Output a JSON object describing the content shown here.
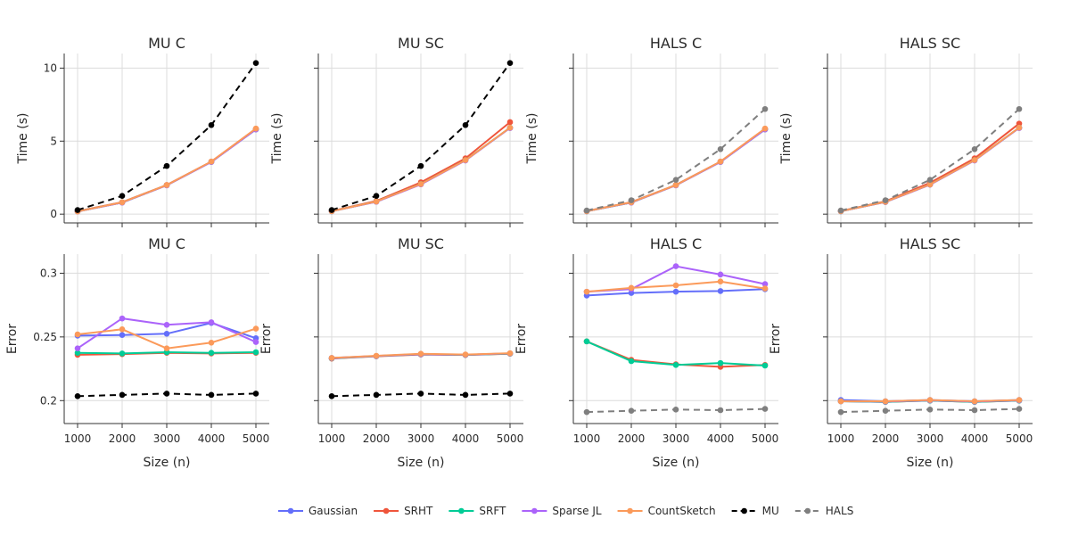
{
  "colors": {
    "Gaussian": "#636efa",
    "SRHT": "#ef553b",
    "SRFT": "#00cc96",
    "Sparse JL": "#ab63fa",
    "CountSketch": "#fb9a5a",
    "MU": "#000000",
    "HALS": "#7f7f7f"
  },
  "legend": [
    {
      "name": "Gaussian",
      "dash": false
    },
    {
      "name": "SRHT",
      "dash": false
    },
    {
      "name": "SRFT",
      "dash": false
    },
    {
      "name": "Sparse JL",
      "dash": false
    },
    {
      "name": "CountSketch",
      "dash": false
    },
    {
      "name": "MU",
      "dash": true
    },
    {
      "name": "HALS",
      "dash": true
    }
  ],
  "chart_data": [
    {
      "type": "line",
      "title": "MU C",
      "row": 0,
      "col": 0,
      "xlabel": "",
      "ylabel": "Time (s)",
      "x": [
        1000,
        2000,
        3000,
        4000,
        5000
      ],
      "ylim": [
        -0.6,
        11.0
      ],
      "yticks": [
        0,
        5,
        10
      ],
      "ytick_labels": [
        "0",
        "5",
        "10"
      ],
      "series": [
        {
          "name": "Gaussian",
          "values": [
            0.18,
            0.8,
            1.98,
            3.58,
            5.82
          ]
        },
        {
          "name": "SRHT",
          "values": [
            0.2,
            0.82,
            2.0,
            3.6,
            5.85
          ]
        },
        {
          "name": "SRFT",
          "values": [
            0.19,
            0.8,
            1.98,
            3.58,
            5.8
          ]
        },
        {
          "name": "Sparse JL",
          "values": [
            0.18,
            0.79,
            1.97,
            3.57,
            5.8
          ]
        },
        {
          "name": "CountSketch",
          "values": [
            0.18,
            0.81,
            1.99,
            3.6,
            5.86
          ]
        },
        {
          "name": "MU",
          "values": [
            0.28,
            1.25,
            3.3,
            6.1,
            10.35
          ],
          "dash": true
        }
      ]
    },
    {
      "type": "line",
      "title": "MU SC",
      "row": 0,
      "col": 1,
      "xlabel": "",
      "ylabel": "Time (s)",
      "x": [
        1000,
        2000,
        3000,
        4000,
        5000
      ],
      "ylim": [
        -0.6,
        11.0
      ],
      "yticks": [
        0,
        5,
        10
      ],
      "ytick_labels": [
        "",
        "",
        ""
      ],
      "series": [
        {
          "name": "Gaussian",
          "values": [
            0.2,
            0.85,
            2.05,
            3.68,
            5.9
          ]
        },
        {
          "name": "SRHT",
          "values": [
            0.21,
            0.9,
            2.18,
            3.82,
            6.3
          ]
        },
        {
          "name": "SRFT",
          "values": [
            0.2,
            0.86,
            2.06,
            3.7,
            5.92
          ]
        },
        {
          "name": "Sparse JL",
          "values": [
            0.2,
            0.85,
            2.04,
            3.68,
            5.9
          ]
        },
        {
          "name": "CountSketch",
          "values": [
            0.2,
            0.86,
            2.06,
            3.7,
            5.92
          ]
        },
        {
          "name": "MU",
          "values": [
            0.28,
            1.25,
            3.3,
            6.1,
            10.35
          ],
          "dash": true
        }
      ]
    },
    {
      "type": "line",
      "title": "HALS C",
      "row": 0,
      "col": 2,
      "xlabel": "",
      "ylabel": "Time (s)",
      "x": [
        1000,
        2000,
        3000,
        4000,
        5000
      ],
      "ylim": [
        -0.6,
        11.0
      ],
      "yticks": [
        0,
        5,
        10
      ],
      "ytick_labels": [
        "",
        "",
        ""
      ],
      "series": [
        {
          "name": "Gaussian",
          "values": [
            0.2,
            0.8,
            1.98,
            3.58,
            5.82
          ]
        },
        {
          "name": "SRHT",
          "values": [
            0.22,
            0.82,
            2.0,
            3.6,
            5.85
          ]
        },
        {
          "name": "SRFT",
          "values": [
            0.2,
            0.8,
            1.98,
            3.58,
            5.8
          ]
        },
        {
          "name": "Sparse JL",
          "values": [
            0.2,
            0.79,
            1.97,
            3.57,
            5.8
          ]
        },
        {
          "name": "CountSketch",
          "values": [
            0.2,
            0.81,
            1.99,
            3.6,
            5.86
          ]
        },
        {
          "name": "HALS",
          "values": [
            0.25,
            0.95,
            2.35,
            4.45,
            7.2
          ],
          "dash": true
        }
      ]
    },
    {
      "type": "line",
      "title": "HALS SC",
      "row": 0,
      "col": 3,
      "xlabel": "",
      "ylabel": "Time (s)",
      "x": [
        1000,
        2000,
        3000,
        4000,
        5000
      ],
      "ylim": [
        -0.6,
        11.0
      ],
      "yticks": [
        0,
        5,
        10
      ],
      "ytick_labels": [
        "",
        "",
        ""
      ],
      "series": [
        {
          "name": "Gaussian",
          "values": [
            0.2,
            0.83,
            2.02,
            3.68,
            5.9
          ]
        },
        {
          "name": "SRHT",
          "values": [
            0.22,
            0.88,
            2.15,
            3.82,
            6.2
          ]
        },
        {
          "name": "SRFT",
          "values": [
            0.2,
            0.84,
            2.03,
            3.7,
            5.92
          ]
        },
        {
          "name": "Sparse JL",
          "values": [
            0.2,
            0.83,
            2.02,
            3.68,
            5.9
          ]
        },
        {
          "name": "CountSketch",
          "values": [
            0.2,
            0.84,
            2.03,
            3.7,
            5.92
          ]
        },
        {
          "name": "HALS",
          "values": [
            0.25,
            0.95,
            2.35,
            4.45,
            7.2
          ],
          "dash": true
        }
      ]
    },
    {
      "type": "line",
      "title": "MU C",
      "row": 1,
      "col": 0,
      "xlabel": "Size (n)",
      "ylabel": "Error",
      "x": [
        1000,
        2000,
        3000,
        4000,
        5000
      ],
      "ylim": [
        0.182,
        0.315
      ],
      "yticks": [
        0.2,
        0.25,
        0.3
      ],
      "ytick_labels": [
        "0.2",
        "0.25",
        "0.3"
      ],
      "series": [
        {
          "name": "Gaussian",
          "values": [
            0.251,
            0.2515,
            0.2525,
            0.261,
            0.249
          ]
        },
        {
          "name": "SRHT",
          "values": [
            0.236,
            0.2365,
            0.2375,
            0.237,
            0.2375
          ]
        },
        {
          "name": "SRFT",
          "values": [
            0.2375,
            0.237,
            0.238,
            0.2375,
            0.238
          ]
        },
        {
          "name": "Sparse JL",
          "values": [
            0.241,
            0.2645,
            0.2595,
            0.2615,
            0.246
          ]
        },
        {
          "name": "CountSketch",
          "values": [
            0.252,
            0.256,
            0.241,
            0.2455,
            0.2565
          ]
        },
        {
          "name": "MU",
          "values": [
            0.2035,
            0.2045,
            0.2055,
            0.2045,
            0.2055
          ],
          "dash": true
        }
      ]
    },
    {
      "type": "line",
      "title": "MU SC",
      "row": 1,
      "col": 1,
      "xlabel": "Size (n)",
      "ylabel": "Error",
      "x": [
        1000,
        2000,
        3000,
        4000,
        5000
      ],
      "ylim": [
        0.182,
        0.315
      ],
      "yticks": [
        0.2,
        0.25,
        0.3
      ],
      "ytick_labels": [
        "",
        "",
        ""
      ],
      "series": [
        {
          "name": "Gaussian",
          "values": [
            0.2335,
            0.235,
            0.2365,
            0.236,
            0.237
          ]
        },
        {
          "name": "SRHT",
          "values": [
            0.233,
            0.2348,
            0.2362,
            0.2358,
            0.2368
          ]
        },
        {
          "name": "SRFT",
          "values": [
            0.2332,
            0.2349,
            0.2364,
            0.2359,
            0.2369
          ]
        },
        {
          "name": "Sparse JL",
          "values": [
            0.2333,
            0.235,
            0.2365,
            0.236,
            0.237
          ]
        },
        {
          "name": "CountSketch",
          "values": [
            0.2335,
            0.2352,
            0.2368,
            0.2362,
            0.2372
          ]
        },
        {
          "name": "MU",
          "values": [
            0.2035,
            0.2045,
            0.2055,
            0.2045,
            0.2055
          ],
          "dash": true
        }
      ]
    },
    {
      "type": "line",
      "title": "HALS C",
      "row": 1,
      "col": 2,
      "xlabel": "Size (n)",
      "ylabel": "Error",
      "x": [
        1000,
        2000,
        3000,
        4000,
        5000
      ],
      "ylim": [
        0.182,
        0.315
      ],
      "yticks": [
        0.2,
        0.25,
        0.3
      ],
      "ytick_labels": [
        "",
        "",
        ""
      ],
      "series": [
        {
          "name": "Gaussian",
          "values": [
            0.2825,
            0.2845,
            0.2855,
            0.286,
            0.2875
          ]
        },
        {
          "name": "SRHT",
          "values": [
            0.2465,
            0.232,
            0.2285,
            0.2265,
            0.228
          ]
        },
        {
          "name": "SRFT",
          "values": [
            0.2465,
            0.231,
            0.228,
            0.2295,
            0.2275
          ]
        },
        {
          "name": "Sparse JL",
          "values": [
            0.2855,
            0.2875,
            0.3055,
            0.299,
            0.2915
          ]
        },
        {
          "name": "CountSketch",
          "values": [
            0.2855,
            0.2885,
            0.2905,
            0.2935,
            0.288
          ]
        },
        {
          "name": "HALS",
          "values": [
            0.191,
            0.192,
            0.193,
            0.1925,
            0.1935
          ],
          "dash": true
        }
      ]
    },
    {
      "type": "line",
      "title": "HALS SC",
      "row": 1,
      "col": 3,
      "xlabel": "Size (n)",
      "ylabel": "Error",
      "x": [
        1000,
        2000,
        3000,
        4000,
        5000
      ],
      "ylim": [
        0.182,
        0.315
      ],
      "yticks": [
        0.2,
        0.25,
        0.3
      ],
      "ytick_labels": [
        "",
        "",
        ""
      ],
      "series": [
        {
          "name": "Gaussian",
          "values": [
            0.2005,
            0.1995,
            0.2005,
            0.1995,
            0.2005
          ]
        },
        {
          "name": "SRHT",
          "values": [
            0.1995,
            0.199,
            0.2,
            0.199,
            0.2
          ]
        },
        {
          "name": "SRFT",
          "values": [
            0.1995,
            0.199,
            0.2,
            0.199,
            0.2
          ]
        },
        {
          "name": "Sparse JL",
          "values": [
            0.1995,
            0.1992,
            0.2002,
            0.1992,
            0.2002
          ]
        },
        {
          "name": "CountSketch",
          "values": [
            0.1995,
            0.1995,
            0.2005,
            0.1995,
            0.2005
          ]
        },
        {
          "name": "HALS",
          "values": [
            0.191,
            0.192,
            0.193,
            0.1925,
            0.1935
          ],
          "dash": true
        }
      ]
    }
  ]
}
